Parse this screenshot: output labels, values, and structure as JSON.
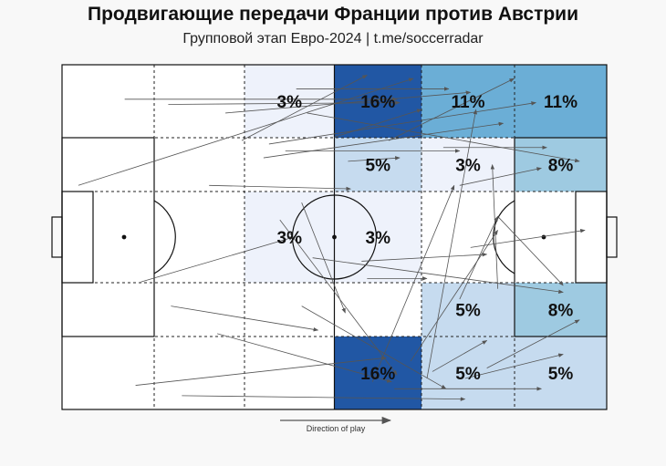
{
  "header": {
    "title": "Продвигающие передачи Франции против Австрии",
    "subtitle": "Групповой этап Евро-2024 | t.me/soccerradar"
  },
  "direction_label": "Direction of play",
  "colors": {
    "zone_scale": [
      "#eef2fb",
      "#c6dbef",
      "#9ecae1",
      "#6baed6",
      "#2157a4"
    ],
    "arrow": "#555555",
    "lines": "#111111"
  },
  "chart_data": {
    "type": "heatmap",
    "title": "Продвигающие передачи Франции против Австрии",
    "subtitle": "Групповой этап Евро-2024 | t.me/soccerradar",
    "units": "%",
    "columns": 6,
    "rows": 5,
    "zones": [
      {
        "col": 2,
        "row": 0,
        "pct": 3
      },
      {
        "col": 3,
        "row": 0,
        "pct": 16
      },
      {
        "col": 4,
        "row": 0,
        "pct": 11
      },
      {
        "col": 5,
        "row": 0,
        "pct": 11
      },
      {
        "col": 3,
        "row": 1,
        "pct": 5
      },
      {
        "col": 4,
        "row": 1,
        "pct": 3
      },
      {
        "col": 5,
        "row": 1,
        "pct": 8
      },
      {
        "col": 2,
        "row": 2,
        "pct": 3
      },
      {
        "col": 3,
        "row": 2,
        "pct": 3
      },
      {
        "col": 4,
        "row": 3,
        "pct": 5
      },
      {
        "col": 5,
        "row": 3,
        "pct": 8
      },
      {
        "col": 3,
        "row": 4,
        "pct": 16
      },
      {
        "col": 4,
        "row": 4,
        "pct": 5
      },
      {
        "col": 5,
        "row": 4,
        "pct": 5
      }
    ],
    "passes": [
      [
        11.5,
        10,
        61.5,
        10
      ],
      [
        3,
        35,
        64.5,
        4
      ],
      [
        19.5,
        11.5,
        62,
        11
      ],
      [
        30,
        14,
        75,
        8
      ],
      [
        38,
        23,
        87,
        11
      ],
      [
        41,
        25,
        73,
        25
      ],
      [
        52.5,
        28,
        62,
        27
      ],
      [
        27,
        35,
        53,
        36
      ],
      [
        14.5,
        63,
        42.5,
        50
      ],
      [
        13.5,
        93,
        59.5,
        85
      ],
      [
        28.5,
        78,
        60.5,
        92
      ],
      [
        44,
        70,
        70.5,
        94
      ],
      [
        40,
        45,
        61.5,
        90
      ],
      [
        20,
        70,
        47,
        77
      ],
      [
        46,
        56,
        92,
        66
      ],
      [
        55,
        57,
        78,
        55
      ],
      [
        73,
        35,
        88,
        30
      ],
      [
        61,
        94,
        88,
        94
      ],
      [
        22,
        96,
        74,
        97
      ],
      [
        74,
        91,
        92,
        84
      ],
      [
        68,
        89,
        78,
        80
      ],
      [
        78,
        88,
        95,
        74
      ],
      [
        80,
        44,
        92,
        64
      ],
      [
        75,
        53,
        96,
        48
      ],
      [
        56,
        62,
        67,
        62
      ],
      [
        45,
        14,
        95,
        28
      ],
      [
        50,
        21,
        66,
        13
      ],
      [
        33,
        22,
        56,
        3
      ],
      [
        37,
        27,
        81,
        17
      ],
      [
        64,
        86,
        80,
        48
      ],
      [
        57,
        92,
        72,
        35
      ],
      [
        67,
        91,
        76,
        13
      ],
      [
        44,
        40,
        52,
        72
      ],
      [
        73,
        68,
        80,
        44
      ],
      [
        80,
        65,
        79,
        29
      ],
      [
        60,
        22,
        83,
        4
      ],
      [
        70,
        24,
        89,
        24
      ],
      [
        43,
        7,
        71,
        7
      ]
    ]
  }
}
